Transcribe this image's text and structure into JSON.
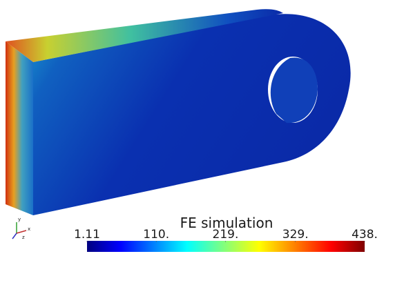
{
  "colorbar": {
    "title": "FE simulation",
    "range": [
      1.11,
      438
    ],
    "ticks": [
      1.11,
      {
        "value": 110,
        "label": "110."
      },
      {
        "value": 219,
        "label": "219."
      },
      {
        "value": 329,
        "label": "329."
      },
      {
        "value": 438,
        "label": "438."
      }
    ]
  },
  "axes": {
    "labels": [
      "x",
      "y",
      "z"
    ]
  }
}
